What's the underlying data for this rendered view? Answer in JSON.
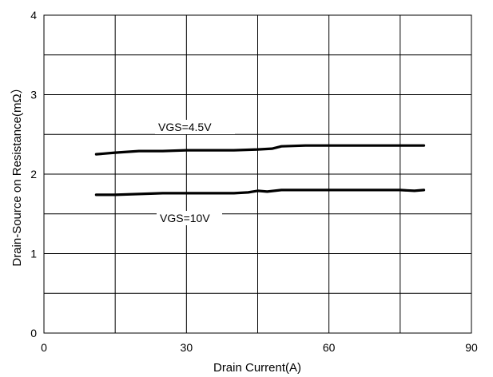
{
  "chart_data": {
    "type": "line",
    "title": "",
    "xlabel": "Drain Current(A)",
    "ylabel": "Drain-Source on Resistance(mΩ）",
    "xlim": [
      0,
      90
    ],
    "ylim": [
      0,
      4
    ],
    "x_ticks": [
      0,
      30,
      60,
      90
    ],
    "x_tick_labels": [
      "0",
      "30",
      "60",
      "90"
    ],
    "y_ticks": [
      0,
      1,
      2,
      3,
      4
    ],
    "y_tick_labels": [
      "0",
      "1",
      "2",
      "3",
      "4"
    ],
    "grid": true,
    "series": [
      {
        "name": "VGS=4.5V",
        "x": [
          11,
          15,
          20,
          25,
          30,
          35,
          40,
          45,
          48,
          50,
          55,
          60,
          65,
          70,
          75,
          80
        ],
        "y": [
          2.25,
          2.27,
          2.29,
          2.29,
          2.3,
          2.3,
          2.3,
          2.31,
          2.32,
          2.35,
          2.36,
          2.36,
          2.36,
          2.36,
          2.36,
          2.36
        ]
      },
      {
        "name": "VGS=10V",
        "x": [
          11,
          15,
          20,
          25,
          30,
          35,
          40,
          43,
          45,
          47,
          50,
          55,
          60,
          65,
          70,
          75,
          78,
          80
        ],
        "y": [
          1.74,
          1.74,
          1.75,
          1.76,
          1.76,
          1.76,
          1.76,
          1.77,
          1.79,
          1.78,
          1.8,
          1.8,
          1.8,
          1.8,
          1.8,
          1.8,
          1.79,
          1.8
        ]
      }
    ]
  }
}
